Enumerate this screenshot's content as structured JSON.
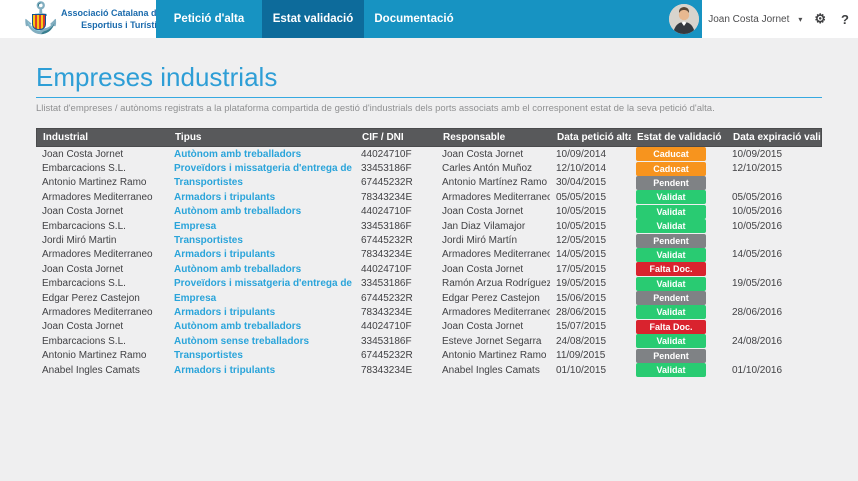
{
  "brand": {
    "line1": "Associació Catalana de Ports",
    "line2": "Esportius i Turístics",
    "logo_icon": "anchor-icon",
    "anchor_glyph": "⚓"
  },
  "nav": {
    "tabs": [
      {
        "label": "Petició d'alta",
        "active": false
      },
      {
        "label": "Estat validació",
        "active": true
      },
      {
        "label": "Documentació",
        "active": false
      }
    ],
    "bar_color": "#1793c2",
    "active_color": "#0d6b9b"
  },
  "user": {
    "name": "Joan Costa Jornet",
    "caret_glyph": "▾",
    "settings_glyph": "⚙",
    "help_glyph": "?"
  },
  "page": {
    "title": "Empreses industrials",
    "subtitle": "Llistat d'empreses / autònoms registrats a la plataforma compartida de gestió d'industrials dels ports associats amb el corresponent estat de la seva petició d'alta."
  },
  "table": {
    "headers": [
      "Industrial",
      "Tipus",
      "CIF / DNI",
      "Responsable",
      "Data petició alta",
      "Estat de validació",
      "Data expiració validació"
    ],
    "status_colors": {
      "Caducat": "#f7941e",
      "Pendent": "#7f8285",
      "Validat": "#29cb72",
      "Falta Doc.": "#d9232e"
    },
    "rows": [
      {
        "industrial": "Joan Costa Jornet",
        "tipus": "Autònom amb treballadors",
        "cif": "44024710F",
        "responsable": "Joan Costa Jornet",
        "alta": "10/09/2014",
        "estat": "Caducat",
        "expiracio": "10/09/2015"
      },
      {
        "industrial": "Embarcacions S.L.",
        "tipus": "Proveïdors i missatgeria d'entrega de material",
        "cif": "33453186F",
        "responsable": "Carles Antón Muñoz",
        "alta": "12/10/2014",
        "estat": "Caducat",
        "expiracio": "12/10/2015"
      },
      {
        "industrial": "Antonio Martinez Ramo",
        "tipus": "Transportistes",
        "cif": "67445232R",
        "responsable": "Antonio Martínez Ramo",
        "alta": "30/04/2015",
        "estat": "Pendent",
        "expiracio": ""
      },
      {
        "industrial": "Armadores Mediterraneo",
        "tipus": "Armadors i tripulants",
        "cif": "78343234E",
        "responsable": "Armadores Mediterraneo",
        "alta": "05/05/2015",
        "estat": "Validat",
        "expiracio": "05/05/2016"
      },
      {
        "industrial": "Joan Costa Jornet",
        "tipus": "Autònom amb treballadors",
        "cif": "44024710F",
        "responsable": "Joan Costa Jornet",
        "alta": "10/05/2015",
        "estat": "Validat",
        "expiracio": "10/05/2016"
      },
      {
        "industrial": "Embarcacions S.L.",
        "tipus": "Empresa",
        "cif": "33453186F",
        "responsable": "Jan Diaz Vilamajor",
        "alta": "10/05/2015",
        "estat": "Validat",
        "expiracio": "10/05/2016"
      },
      {
        "industrial": "Jordi Miró Martin",
        "tipus": "Transportistes",
        "cif": "67445232R",
        "responsable": "Jordi Miró Martín",
        "alta": "12/05/2015",
        "estat": "Pendent",
        "expiracio": ""
      },
      {
        "industrial": "Armadores Mediterraneo",
        "tipus": "Armadors i tripulants",
        "cif": "78343234E",
        "responsable": "Armadores Mediterraneo",
        "alta": "14/05/2015",
        "estat": "Validat",
        "expiracio": "14/05/2016"
      },
      {
        "industrial": "Joan Costa Jornet",
        "tipus": "Autònom amb treballadors",
        "cif": "44024710F",
        "responsable": "Joan Costa Jornet",
        "alta": "17/05/2015",
        "estat": "Falta Doc.",
        "expiracio": ""
      },
      {
        "industrial": "Embarcacions S.L.",
        "tipus": "Proveïdors i missatgeria d'entrega de material",
        "cif": "33453186F",
        "responsable": "Ramón Arzua Rodríguez",
        "alta": "19/05/2015",
        "estat": "Validat",
        "expiracio": "19/05/2016"
      },
      {
        "industrial": "Edgar Perez Castejon",
        "tipus": "Empresa",
        "cif": "67445232R",
        "responsable": "Edgar Perez Castejon",
        "alta": "15/06/2015",
        "estat": "Pendent",
        "expiracio": ""
      },
      {
        "industrial": "Armadores Mediterraneo",
        "tipus": "Armadors i tripulants",
        "cif": "78343234E",
        "responsable": "Armadores Mediterraneo",
        "alta": "28/06/2015",
        "estat": "Validat",
        "expiracio": "28/06/2016"
      },
      {
        "industrial": "Joan Costa Jornet",
        "tipus": "Autònom amb treballadors",
        "cif": "44024710F",
        "responsable": "Joan Costa Jornet",
        "alta": "15/07/2015",
        "estat": "Falta Doc.",
        "expiracio": ""
      },
      {
        "industrial": "Embarcacions S.L.",
        "tipus": "Autònom sense treballadors",
        "cif": "33453186F",
        "responsable": "Esteve Jornet Segarra",
        "alta": "24/08/2015",
        "estat": "Validat",
        "expiracio": "24/08/2016"
      },
      {
        "industrial": "Antonio Martinez Ramo",
        "tipus": "Transportistes",
        "cif": "67445232R",
        "responsable": "Antonio Martinez Ramo",
        "alta": "11/09/2015",
        "estat": "Pendent",
        "expiracio": ""
      },
      {
        "industrial": "Anabel Ingles Camats",
        "tipus": "Armadors i tripulants",
        "cif": "78343234E",
        "responsable": "Anabel Ingles Camats",
        "alta": "01/10/2015",
        "estat": "Validat",
        "expiracio": "01/10/2016"
      }
    ]
  }
}
